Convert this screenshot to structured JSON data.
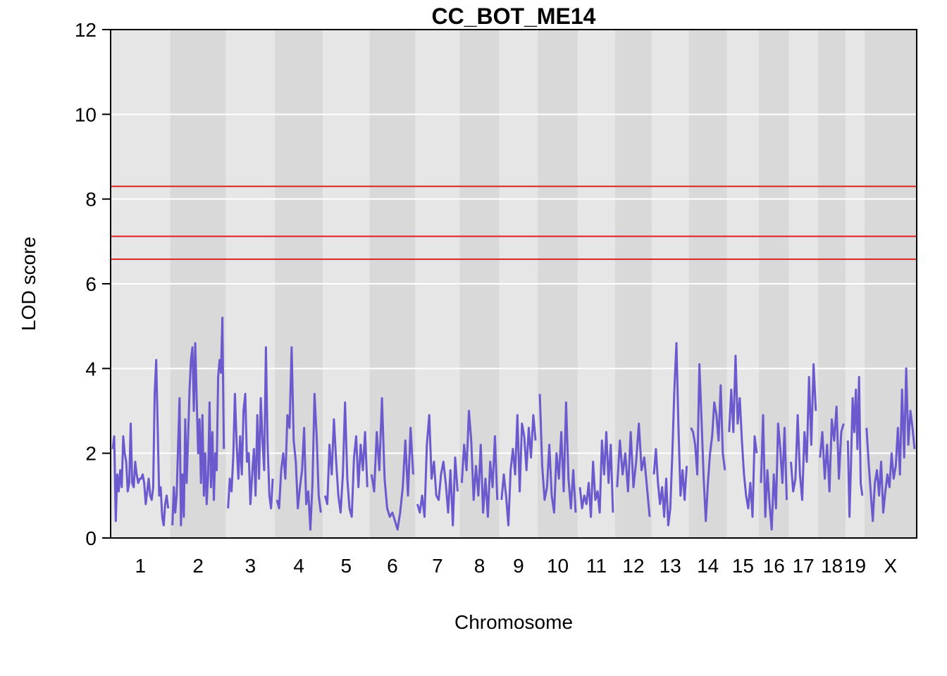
{
  "chart_data": {
    "type": "line",
    "title": "CC_BOT_ME14",
    "xlabel": "Chromosome",
    "ylabel": "LOD score",
    "ylim": [
      0,
      12
    ],
    "yticks": [
      "0",
      "2",
      "4",
      "6",
      "8",
      "10",
      "12"
    ],
    "grid": true,
    "chromosomes": [
      {
        "label": "1",
        "length": 195
      },
      {
        "label": "2",
        "length": 182
      },
      {
        "label": "3",
        "length": 160
      },
      {
        "label": "4",
        "length": 157
      },
      {
        "label": "5",
        "length": 152
      },
      {
        "label": "6",
        "length": 150
      },
      {
        "label": "7",
        "length": 145
      },
      {
        "label": "8",
        "length": 130
      },
      {
        "label": "9",
        "length": 125
      },
      {
        "label": "10",
        "length": 131
      },
      {
        "label": "11",
        "length": 122
      },
      {
        "label": "12",
        "length": 120
      },
      {
        "label": "13",
        "length": 121
      },
      {
        "label": "14",
        "length": 125
      },
      {
        "label": "15",
        "length": 104
      },
      {
        "label": "16",
        "length": 98
      },
      {
        "label": "17",
        "length": 95
      },
      {
        "label": "18",
        "length": 91
      },
      {
        "label": "19",
        "length": 61
      },
      {
        "label": "X",
        "length": 171
      }
    ],
    "thresholds": [
      8.3,
      7.12,
      6.58
    ],
    "series": [
      {
        "color": "#6a5acd",
        "profiles": [
          [
            2.1,
            2.4,
            0.4,
            1.5,
            1.1,
            1.6,
            1.2,
            2.4,
            2.0,
            1.8,
            1.1,
            1.3,
            2.7,
            1.3,
            1.2,
            1.8,
            1.5,
            1.3,
            1.4,
            1.4,
            1.5,
            1.3,
            0.8,
            1.1,
            1.4,
            1.0,
            0.9,
            1.2,
            3.4,
            4.2,
            2.6,
            1.0,
            1.2,
            0.5,
            0.3,
            0.8,
            1.0,
            0.7
          ],
          [
            0.3,
            1.2,
            0.6,
            1.0,
            2.2,
            3.3,
            0.3,
            1.5,
            0.5,
            2.8,
            1.3,
            2.4,
            3.5,
            4.2,
            4.5,
            3.0,
            4.6,
            3.3,
            2.0,
            2.8,
            1.3,
            2.9,
            1.0,
            2.0,
            0.8,
            1.5,
            3.2,
            1.2,
            2.5,
            0.9,
            2.0,
            1.6,
            3.8,
            4.2,
            3.9,
            5.2,
            2.1
          ],
          [
            0.7,
            1.4,
            1.1,
            1.9,
            3.4,
            2.2,
            1.4,
            2.4,
            1.5,
            3.0,
            3.4,
            1.8,
            2.0,
            0.8,
            1.5,
            2.1,
            1.0,
            2.9,
            1.4,
            3.3,
            2.3,
            1.6,
            4.5,
            2.2,
            1.0,
            0.7,
            1.4
          ],
          [
            0.9,
            0.7,
            1.6,
            2.0,
            1.4,
            2.9,
            2.6,
            4.5,
            2.3,
            1.8,
            0.7,
            1.2,
            1.6,
            2.6,
            0.8,
            1.1,
            0.2,
            1.3,
            3.4,
            2.4,
            1.0,
            0.6
          ],
          [
            1.0,
            0.8,
            2.2,
            1.5,
            2.8,
            1.8,
            1.0,
            0.6,
            1.5,
            3.2,
            1.4,
            0.7,
            0.5,
            1.9,
            2.4,
            1.2,
            2.2,
            1.6,
            2.5,
            1.2
          ],
          [
            1.5,
            1.1,
            2.5,
            1.6,
            3.3,
            1.4,
            0.7,
            0.5,
            0.6,
            0.4,
            0.2,
            0.6,
            1.2,
            2.3,
            1.0,
            2.6,
            1.5
          ],
          [
            0.8,
            0.6,
            1.0,
            0.5,
            2.2,
            2.9,
            1.4,
            1.8,
            1.0,
            0.9,
            1.5,
            1.8,
            1.3,
            0.6,
            1.6,
            0.3,
            1.9,
            1.1
          ],
          [
            1.3,
            2.2,
            1.6,
            3.0,
            2.3,
            0.9,
            1.7,
            1.0,
            2.2,
            0.6,
            1.4,
            0.5,
            1.8,
            1.2,
            2.4,
            0.9
          ],
          [
            0.9,
            1.5,
            1.0,
            0.3,
            1.6,
            2.1,
            1.5,
            2.9,
            1.1,
            2.7,
            2.4,
            1.6,
            2.6,
            1.9,
            2.9,
            2.3
          ],
          [
            3.4,
            1.7,
            0.9,
            1.2,
            2.2,
            1.0,
            0.6,
            2.0,
            1.4,
            2.5,
            1.1,
            3.2,
            1.4,
            0.7,
            1.6,
            0.6
          ],
          [
            1.2,
            0.7,
            1.0,
            0.8,
            1.3,
            0.5,
            1.8,
            0.9,
            1.1,
            0.6,
            2.3,
            1.5,
            2.5,
            1.3,
            2.2,
            0.6
          ],
          [
            1.2,
            2.3,
            1.5,
            2.0,
            1.1,
            2.5,
            1.2,
            1.8,
            2.7,
            1.6,
            1.9,
            1.2,
            0.5
          ],
          [
            1.5,
            2.1,
            1.3,
            0.8,
            1.2,
            0.5,
            1.4,
            0.3,
            0.7,
            2.0,
            3.5,
            4.6,
            2.6,
            1.0,
            1.6,
            0.9,
            1.7
          ],
          [
            2.6,
            2.5,
            2.2,
            1.5,
            4.1,
            2.8,
            1.4,
            0.4,
            1.3,
            2.0,
            2.4,
            3.2,
            2.9,
            2.3,
            3.6,
            2.0,
            1.6
          ],
          [
            2.5,
            3.5,
            2.5,
            4.3,
            2.7,
            3.3,
            2.3,
            1.5,
            1.0,
            0.7,
            1.3,
            0.5,
            2.4,
            2.0
          ],
          [
            1.3,
            2.9,
            0.5,
            1.6,
            0.8,
            0.2,
            1.5,
            0.7,
            2.7,
            2.1,
            1.3,
            2.6,
            0.9
          ],
          [
            1.8,
            1.1,
            1.4,
            2.9,
            1.5,
            0.9,
            2.5,
            1.8,
            3.8,
            2.2,
            4.1,
            3.0
          ],
          [
            1.9,
            2.5,
            1.4,
            2.2,
            1.1,
            2.8,
            2.3,
            3.1,
            1.4,
            2.5,
            2.7
          ],
          [
            2.3,
            0.5,
            1.8,
            3.3,
            2.5,
            3.5,
            2.1,
            3.8,
            1.3,
            1.0
          ],
          [
            2.6,
            1.8,
            1.1,
            0.4,
            1.3,
            1.6,
            1.0,
            1.8,
            0.6,
            1.1,
            1.5,
            1.2,
            2.0,
            1.4,
            1.7,
            2.6,
            1.5,
            3.5,
            1.9,
            4.0,
            2.2,
            3.0,
            2.6,
            2.1
          ]
        ]
      }
    ]
  }
}
